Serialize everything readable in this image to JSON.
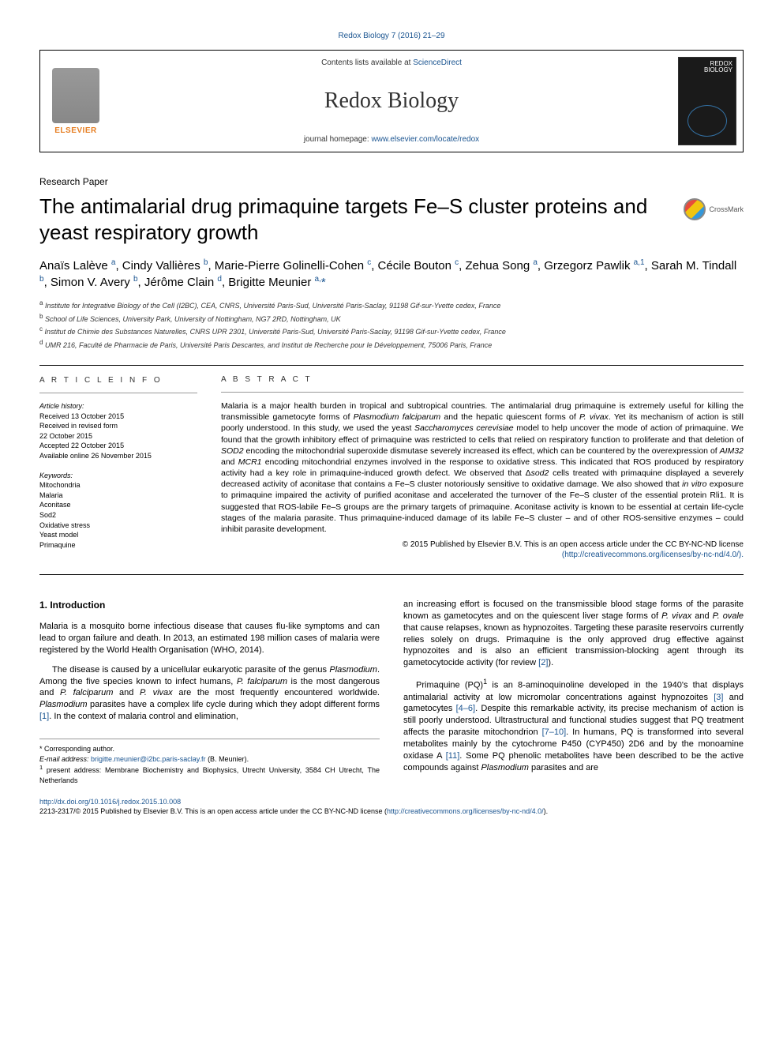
{
  "colors": {
    "link": "#1a5490",
    "text": "#000000",
    "elsevier_orange": "#e67e22",
    "gray": "#333333",
    "border": "#000000"
  },
  "typography": {
    "body_fontsize": 11,
    "title_fontsize": 26,
    "journal_fontsize": 28,
    "small_fontsize": 9,
    "abstract_fontsize": 10.5
  },
  "header": {
    "top_ref": "Redox Biology 7 (2016) 21–29",
    "contents_prefix": "Contents lists available at ",
    "contents_link": "ScienceDirect",
    "journal": "Redox Biology",
    "homepage_prefix": "journal homepage: ",
    "homepage_url": "www.elsevier.com/locate/redox",
    "publisher_name": "ELSEVIER",
    "cover_title_l1": "REDOX",
    "cover_title_l2": "BIOLOGY"
  },
  "paper": {
    "type": "Research Paper",
    "title": "The antimalarial drug primaquine targets Fe–S cluster proteins and yeast respiratory growth",
    "crossmark_label": "CrossMark"
  },
  "authors": {
    "list": "Anaïs Lalève <sup>a</sup>, Cindy Vallières <sup>b</sup>, Marie-Pierre Golinelli-Cohen <sup>c</sup>, Cécile Bouton <sup>c</sup>, Zehua Song <sup>a</sup>, Grzegorz Pawlik <sup>a,1</sup>, Sarah M. Tindall <sup>b</sup>, Simon V. Avery <sup>b</sup>, Jérôme Clain <sup>d</sup>, Brigitte Meunier <sup>a,</sup><span class='corr'>*</span>"
  },
  "affiliations": [
    {
      "sup": "a",
      "text": "Institute for Integrative Biology of the Cell (I2BC), CEA, CNRS, Université Paris-Sud, Université Paris-Saclay, 91198 Gif-sur-Yvette cedex, France"
    },
    {
      "sup": "b",
      "text": "School of Life Sciences, University Park, University of Nottingham, NG7 2RD, Nottingham, UK"
    },
    {
      "sup": "c",
      "text": "Institut de Chimie des Substances Naturelles, CNRS UPR 2301, Université Paris-Sud, Université Paris-Saclay, 91198 Gif-sur-Yvette cedex, France"
    },
    {
      "sup": "d",
      "text": "UMR 216, Faculté de Pharmacie de Paris, Université Paris Descartes, and Institut de Recherche pour le Développement, 75006 Paris, France"
    }
  ],
  "article_info": {
    "heading": "A R T I C L E  I N F O",
    "history_label": "Article history:",
    "history": [
      "Received 13 October 2015",
      "Received in revised form",
      "22 October 2015",
      "Accepted 22 October 2015",
      "Available online 26 November 2015"
    ],
    "keywords_label": "Keywords:",
    "keywords": [
      "Mitochondria",
      "Malaria",
      "Aconitase",
      "Sod2",
      "Oxidative stress",
      "Yeast model",
      "Primaquine"
    ]
  },
  "abstract": {
    "heading": "A B S T R A C T",
    "text": "Malaria is a major health burden in tropical and subtropical countries. The antimalarial drug primaquine is extremely useful for killing the transmissible gametocyte forms of <i>Plasmodium falciparum</i> and the hepatic quiescent forms of <i>P. vivax</i>. Yet its mechanism of action is still poorly understood. In this study, we used the yeast <i>Saccharomyces cerevisiae</i> model to help uncover the mode of action of primaquine. We found that the growth inhibitory effect of primaquine was restricted to cells that relied on respiratory function to proliferate and that deletion of <i>SOD2</i> encoding the mitochondrial superoxide dismutase severely increased its effect, which can be countered by the overexpression of <i>AIM32</i> and <i>MCR1</i> encoding mitochondrial enzymes involved in the response to oxidative stress. This indicated that ROS produced by respiratory activity had a key role in primaquine-induced growth defect. We observed that Δ<i>sod2</i> cells treated with primaquine displayed a severely decreased activity of aconitase that contains a Fe–S cluster notoriously sensitive to oxidative damage. We also showed that <i>in vitro</i> exposure to primaquine impaired the activity of purified aconitase and accelerated the turnover of the Fe–S cluster of the essential protein Rli1. It is suggested that ROS-labile Fe–S groups are the primary targets of primaquine. Aconitase activity is known to be essential at certain life-cycle stages of the malaria parasite. Thus primaquine-induced damage of its labile Fe–S cluster – and of other ROS-sensitive enzymes – could inhibit parasite development.",
    "copyright": "© 2015 Published by Elsevier B.V. This is an open access article under the CC BY-NC-ND license",
    "license_url": "(http://creativecommons.org/licenses/by-nc-nd/4.0/)."
  },
  "body": {
    "section_heading": "1.  Introduction",
    "left_paras": [
      "Malaria is a mosquito borne infectious disease that causes flu-like symptoms and can lead to organ failure and death. In 2013, an estimated 198 million cases of malaria were registered by the World Health Organisation (WHO, 2014).",
      "The disease is caused by a unicellular eukaryotic parasite of the genus <i>Plasmodium</i>. Among the five species known to infect humans, <i>P. falciparum</i> is the most dangerous and <i>P. falciparum</i> and <i>P. vivax</i> are the most frequently encountered worldwide. <i>Plasmodium</i> parasites have a complex life cycle during which they adopt different forms <a class='ref'>[1]</a>. In the context of malaria control and elimination,"
    ],
    "right_paras": [
      "an increasing effort is focused on the transmissible blood stage forms of the parasite known as gametocytes and on the quiescent liver stage forms of <i>P. vivax</i> and <i>P. ovale</i> that cause relapses, known as hypnozoites. Targeting these parasite reservoirs currently relies solely on drugs. Primaquine is the only approved drug effective against hypnozoites and is also an efficient transmission-blocking agent through its gametocytocide activity (for review <a class='ref'>[2]</a>).",
      "Primaquine (PQ)<sup>1</sup> is an 8-aminoquinoline developed in the 1940's that displays antimalarial activity at low micromolar concentrations against hypnozoites <a class='ref'>[3]</a> and gametocytes <a class='ref'>[4–6]</a>. Despite this remarkable activity, its precise mechanism of action is still poorly understood. Ultrastructural and functional studies suggest that PQ treatment affects the parasite mitochondrion <a class='ref'>[7–10]</a>. In humans, PQ is transformed into several metabolites mainly by the cytochrome P450 (CYP450) 2D6 and by the monoamine oxidase A <a class='ref'>[11]</a>. Some PQ phenolic metabolites have been described to be the active compounds against <i>Plasmodium</i> parasites and are"
    ]
  },
  "footnotes": {
    "corr_label": "* Corresponding author.",
    "email_label": "E-mail address: ",
    "email": "brigitte.meunier@i2bc.paris-saclay.fr",
    "email_suffix": " (B. Meunier).",
    "note1": "<sup>1</sup> present address: Membrane Biochemistry and Biophysics, Utrecht University, 3584 CH Utrecht, The Netherlands"
  },
  "footer": {
    "doi": "http://dx.doi.org/10.1016/j.redox.2015.10.008",
    "license": "2213-2317/© 2015 Published by Elsevier B.V. This is an open access article under the CC BY-NC-ND license (",
    "license_url": "http://creativecommons.org/licenses/by-nc-nd/4.0/",
    "license_suffix": ")."
  }
}
